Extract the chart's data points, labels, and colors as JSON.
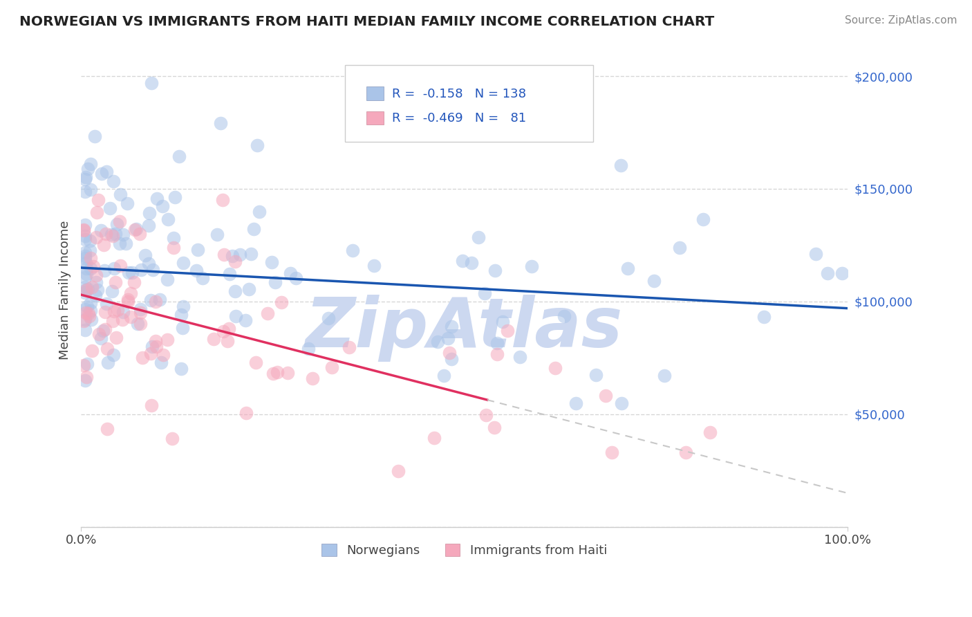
{
  "title": "NORWEGIAN VS IMMIGRANTS FROM HAITI MEDIAN FAMILY INCOME CORRELATION CHART",
  "source": "Source: ZipAtlas.com",
  "ylabel": "Median Family Income",
  "color_norwegian": "#aac4e8",
  "color_haiti": "#f5a8bc",
  "color_norwegian_line": "#1a56b0",
  "color_haiti_line": "#e03060",
  "color_dashed": "#c8c8c8",
  "watermark": "ZipAtlas",
  "watermark_color": "#ccd8f0",
  "background_color": "#ffffff",
  "nor_line_x0": 0,
  "nor_line_y0": 115000,
  "nor_line_x1": 100,
  "nor_line_y1": 97000,
  "hai_line_x0": 0,
  "hai_line_y0": 103000,
  "hai_line_x1": 100,
  "hai_line_y1": 15000,
  "hai_solid_end": 53,
  "xlim": [
    0,
    100
  ],
  "ylim": [
    0,
    210000
  ],
  "yticks": [
    0,
    50000,
    100000,
    150000,
    200000
  ],
  "ytick_labels": [
    "",
    "$50,000",
    "$100,000",
    "$150,000",
    "$200,000"
  ],
  "xtick_labels": [
    "0.0%",
    "100.0%"
  ]
}
